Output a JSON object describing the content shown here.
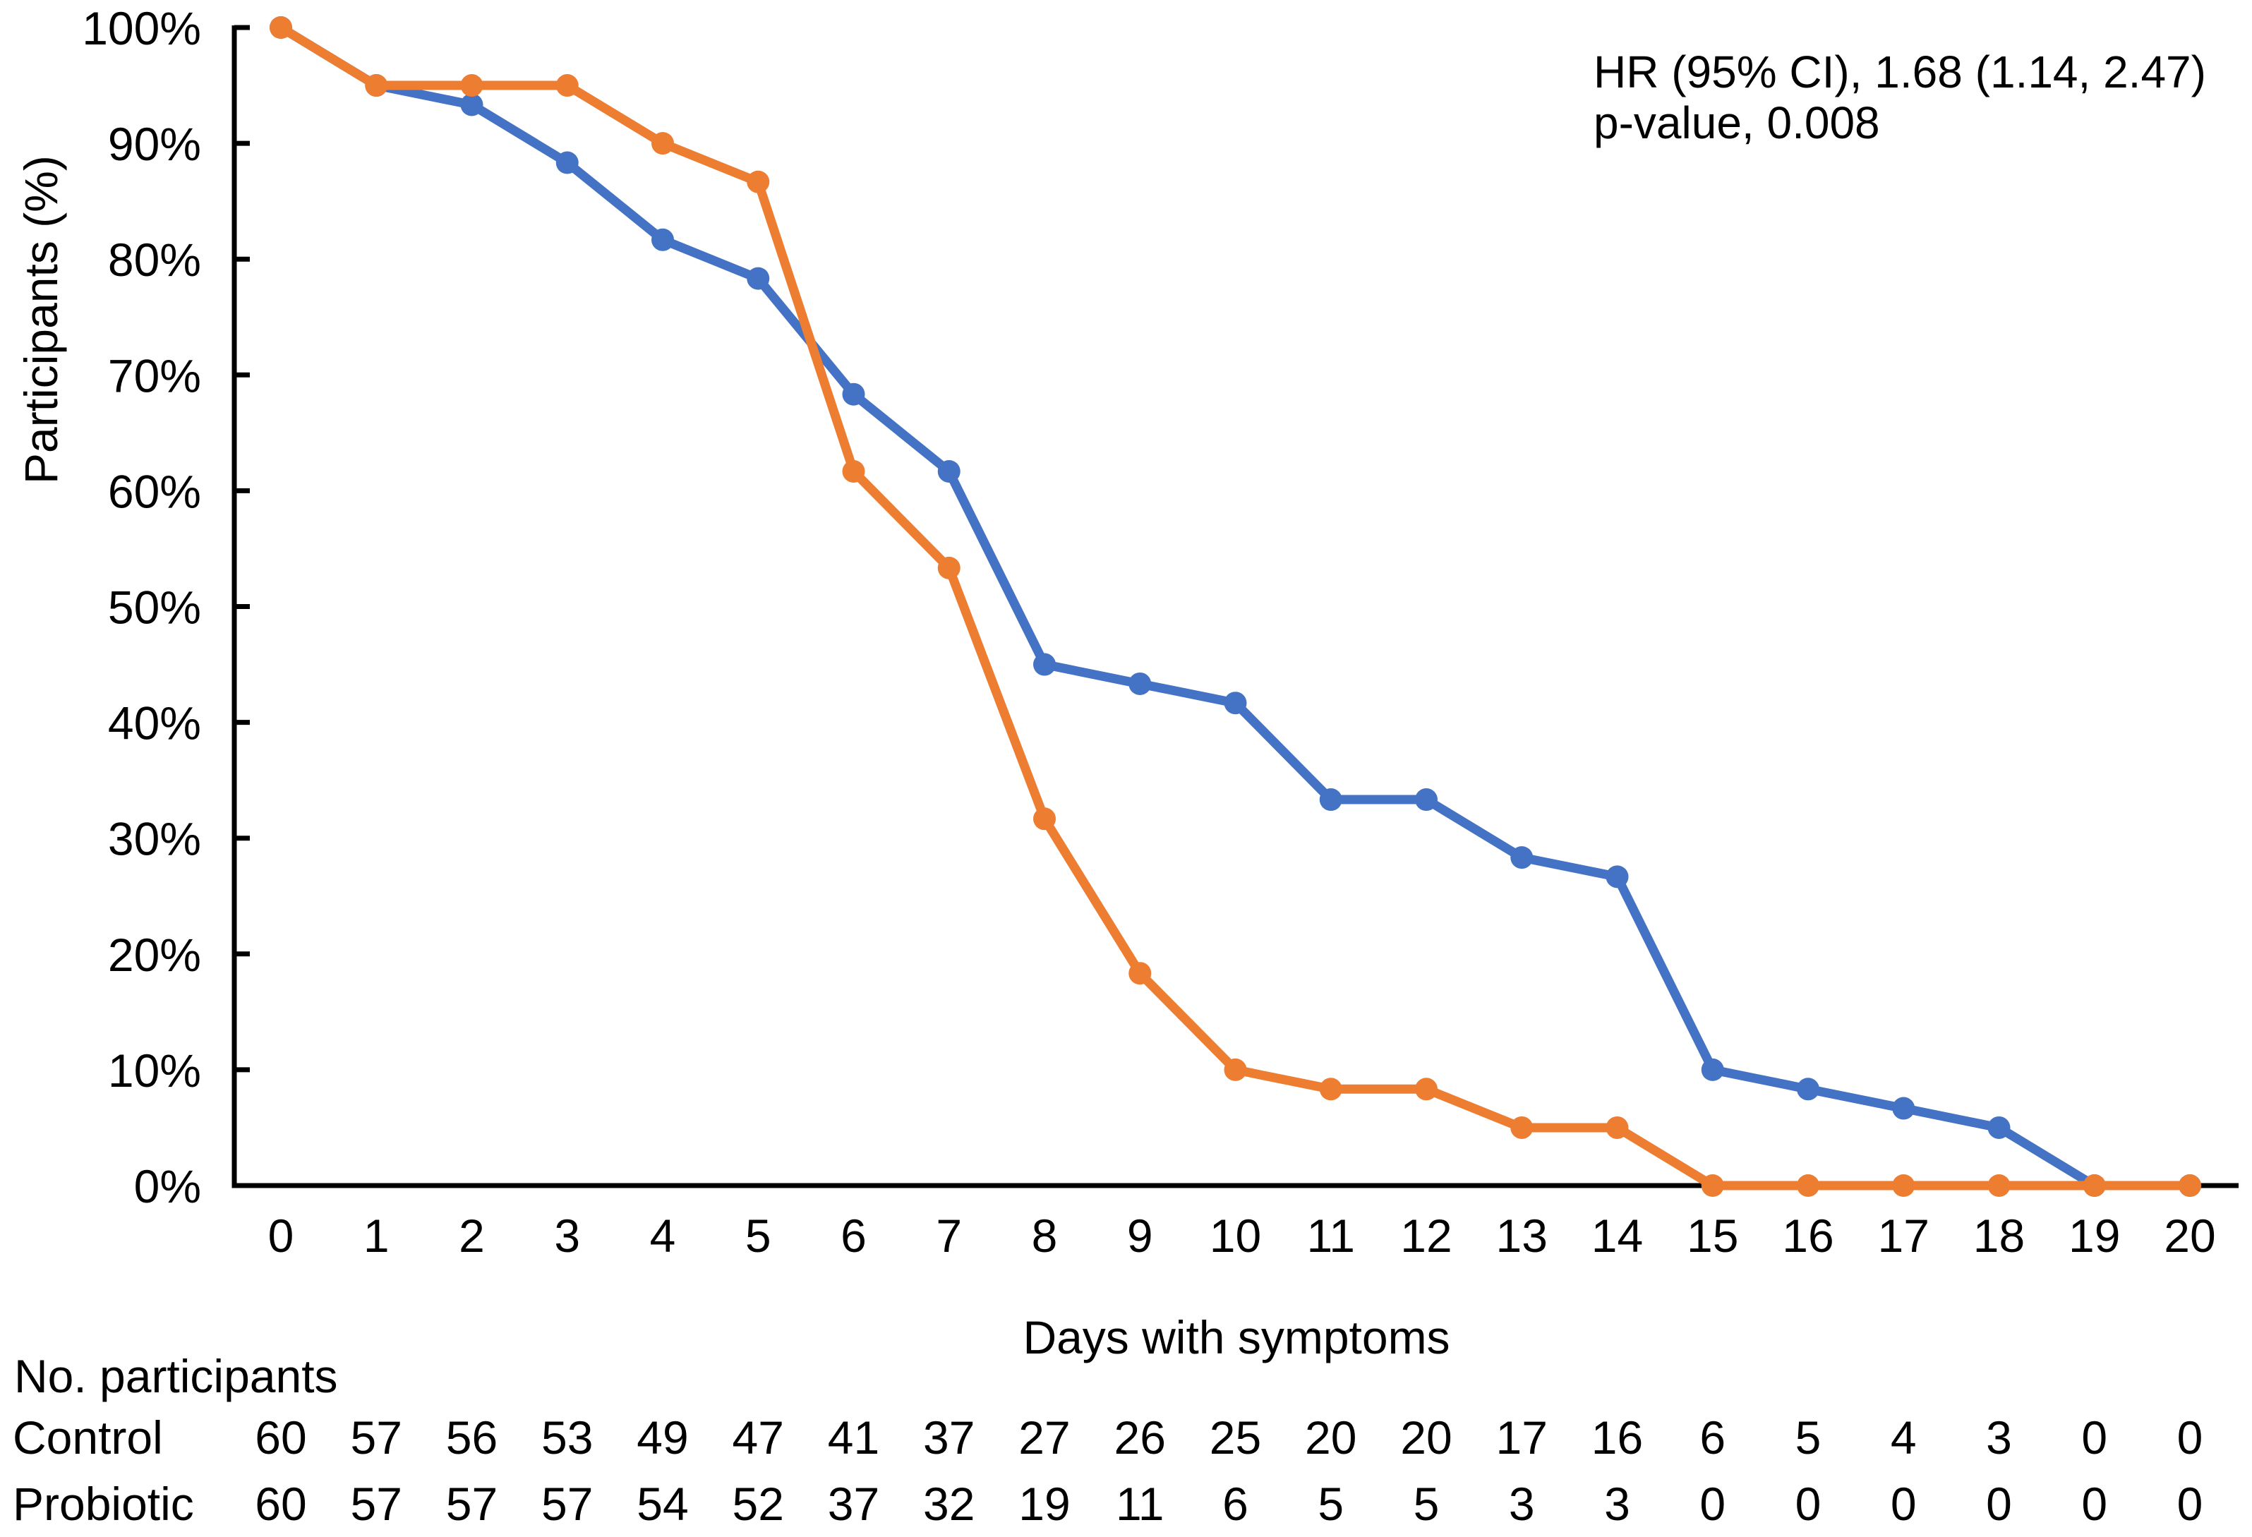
{
  "figure": {
    "background": "#ffffff",
    "text_color": "#000000",
    "axis_color": "#000000"
  },
  "annotation": {
    "line1": "HR (95% CI), 1.68 (1.14, 2.47)",
    "line2": "p-value, 0.008"
  },
  "chart_data": {
    "type": "line",
    "title": "",
    "xlabel": "Days with symptoms",
    "ylabel": "Participants (%)",
    "x": [
      0,
      1,
      2,
      3,
      4,
      5,
      6,
      7,
      8,
      9,
      10,
      11,
      12,
      13,
      14,
      15,
      16,
      17,
      18,
      19,
      20
    ],
    "xlim": [
      0,
      20
    ],
    "ylim": [
      0,
      100
    ],
    "y_ticks_percent": [
      0,
      10,
      20,
      30,
      40,
      50,
      60,
      70,
      80,
      90,
      100
    ],
    "y_tick_labels": [
      "0%",
      "10%",
      "20%",
      "30%",
      "40%",
      "50%",
      "60%",
      "70%",
      "80%",
      "90%",
      "100%"
    ],
    "grid": false,
    "legend": "none (series identified in risk table)",
    "marker": "circle",
    "series": [
      {
        "name": "Control",
        "color": "#4472C4",
        "percent": [
          100,
          95,
          93.33,
          88.33,
          81.67,
          78.33,
          68.33,
          61.67,
          45,
          43.33,
          41.67,
          33.33,
          33.33,
          28.33,
          26.67,
          10,
          8.33,
          6.67,
          5,
          0,
          0
        ]
      },
      {
        "name": "Probiotic",
        "color": "#ED7D31",
        "percent": [
          100,
          95,
          95,
          95,
          90,
          86.67,
          61.67,
          53.33,
          31.67,
          18.33,
          10,
          8.33,
          8.33,
          5,
          5,
          0,
          0,
          0,
          0,
          0,
          0
        ]
      }
    ],
    "annotations": [
      "HR (95% CI), 1.68 (1.14, 2.47)",
      "p-value, 0.008"
    ]
  },
  "risk_table": {
    "title": "No. participants",
    "days": [
      0,
      1,
      2,
      3,
      4,
      5,
      6,
      7,
      8,
      9,
      10,
      11,
      12,
      13,
      14,
      15,
      16,
      17,
      18,
      19,
      20
    ],
    "rows": [
      {
        "label": "Control",
        "values": [
          60,
          57,
          56,
          53,
          49,
          47,
          41,
          37,
          27,
          26,
          25,
          20,
          20,
          17,
          16,
          6,
          5,
          4,
          3,
          0,
          0
        ]
      },
      {
        "label": "Probiotic",
        "values": [
          60,
          57,
          57,
          57,
          54,
          52,
          37,
          32,
          19,
          11,
          6,
          5,
          5,
          3,
          3,
          0,
          0,
          0,
          0,
          0,
          0
        ]
      }
    ]
  }
}
